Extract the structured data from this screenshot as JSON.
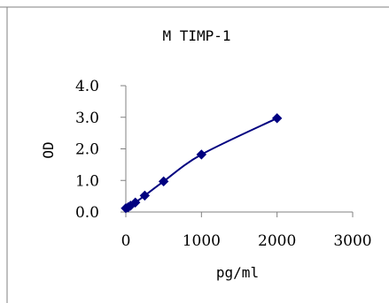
{
  "chart_data": {
    "type": "scatter",
    "title": "M TIMP-1",
    "xlabel": "pg/ml",
    "ylabel": "OD",
    "xlim": [
      0,
      3000
    ],
    "ylim": [
      0,
      4
    ],
    "x_ticks": [
      "0",
      "1000",
      "2000",
      "3000"
    ],
    "y_ticks": [
      "0.0",
      "1.0",
      "2.0",
      "3.0",
      "4.0"
    ],
    "grid": false,
    "legend": "none",
    "series": [
      {
        "color": "#000080",
        "marker": "diamond",
        "trendline": "smooth",
        "points": [
          {
            "x": 0,
            "y": 0.12
          },
          {
            "x": 31.25,
            "y": 0.15
          },
          {
            "x": 62.5,
            "y": 0.2
          },
          {
            "x": 125,
            "y": 0.3
          },
          {
            "x": 250,
            "y": 0.52
          },
          {
            "x": 500,
            "y": 0.97
          },
          {
            "x": 1000,
            "y": 1.82
          },
          {
            "x": 2000,
            "y": 2.97
          }
        ]
      }
    ]
  }
}
